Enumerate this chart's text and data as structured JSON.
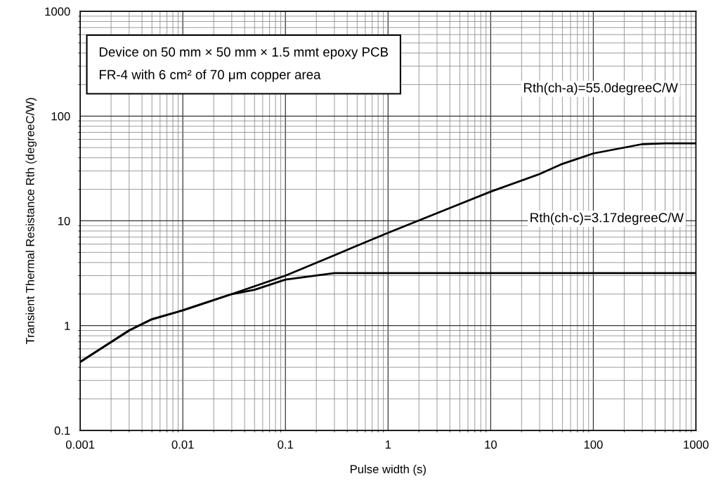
{
  "chart_data": {
    "type": "line",
    "xlabel": "Pulse width (s)",
    "ylabel": "Transient Thermal Resistance Rth (degreeC/W)",
    "log": "xy",
    "grid": true,
    "legend": false,
    "marker": "none",
    "line_style": "solid",
    "xlim": [
      0.001,
      1000
    ],
    "xticks": [
      0.001,
      0.01,
      0.1,
      1,
      10,
      100,
      1000
    ],
    "ylim": [
      0.1,
      1000
    ],
    "yticks": [
      0.1,
      1,
      10,
      100,
      1000
    ],
    "series": [
      {
        "color": "#000000",
        "x": [
          0.001,
          0.003,
          0.005,
          0.01,
          0.03,
          0.1,
          0.3,
          0.5,
          1,
          5,
          10,
          30,
          50,
          100,
          300,
          500,
          1000
        ],
        "values": [
          0.45,
          0.9,
          1.15,
          1.4,
          2.0,
          3.0,
          4.7,
          5.8,
          7.7,
          14.5,
          19,
          28,
          35,
          44,
          54,
          55,
          55
        ]
      },
      {
        "color": "#000000",
        "x": [
          0.001,
          0.003,
          0.005,
          0.01,
          0.03,
          0.05,
          0.1,
          0.3,
          1000
        ],
        "values": [
          0.45,
          0.9,
          1.15,
          1.4,
          2.0,
          2.2,
          2.75,
          3.17,
          3.17
        ]
      }
    ],
    "annotations": [
      "Device on 50 mm × 50 mm × 1.5 mmt epoxy PCB",
      "FR-4 with 6 cm² of 70 μm copper area",
      "Rth(ch-a)=55.0degreeC/W",
      "Rth(ch-c)=3.17degreeC/W"
    ]
  }
}
